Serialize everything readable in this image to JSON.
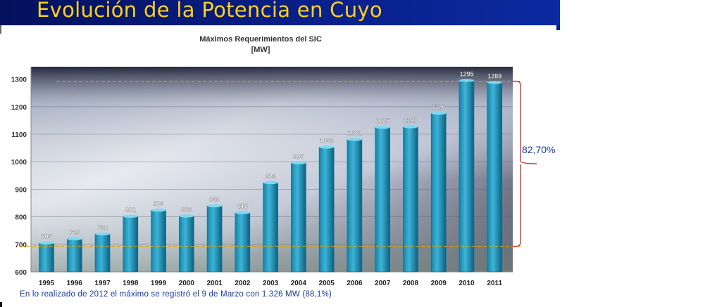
{
  "header": {
    "title": "Evolución de la Potencia en Cuyo"
  },
  "chart_data": {
    "type": "bar",
    "title": "Máximos Requerimientos del  SIC",
    "unit": "[MW]",
    "categories": [
      "1995",
      "1996",
      "1997",
      "1998",
      "1999",
      "2000",
      "2001",
      "2002",
      "2003",
      "2004",
      "2005",
      "2006",
      "2007",
      "2008",
      "2009",
      "2010",
      "2011"
    ],
    "values": [
      705,
      720,
      738,
      802,
      824,
      803,
      840,
      815,
      924,
      996,
      1053,
      1081,
      1125,
      1127,
      1176,
      1295,
      1288
    ],
    "ylim": [
      600,
      1350
    ],
    "yticks": [
      600,
      700,
      800,
      900,
      1000,
      1100,
      1200,
      1300
    ],
    "reference_lines": [
      {
        "value": 1295,
        "color": "#e0a000",
        "style": "dashed"
      },
      {
        "value": 693,
        "color": "#e0a000",
        "style": "dashed"
      }
    ],
    "annotation": {
      "text": "82,70%",
      "color": "#1a3aa0",
      "bracket_color": "#d62020",
      "from": 693,
      "to": 1295
    },
    "grid": true,
    "colors": {
      "bar": "#2aa3c8",
      "bar_dark": "#126a8a"
    }
  },
  "footer": {
    "note": "En lo realizado de 2012 el máximo se registró el 9 de Marzo con  1.326 MW  (88,1%)"
  }
}
